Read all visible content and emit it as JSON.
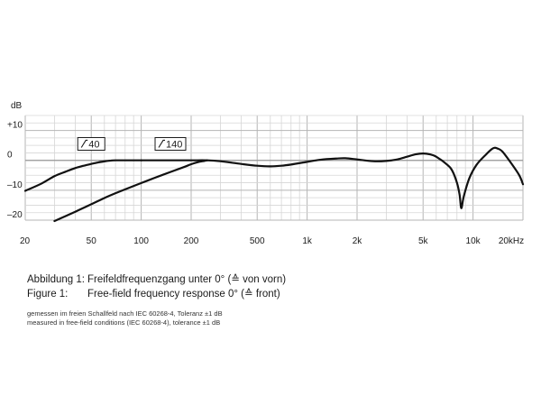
{
  "chart_data": {
    "type": "line",
    "title": "",
    "x_scale": "log",
    "xlim": [
      20,
      20000
    ],
    "ylim": [
      -20,
      15
    ],
    "ylabel": "dB",
    "grid": true,
    "x_tick_labels": [
      {
        "value": 20,
        "label": "20"
      },
      {
        "value": 50,
        "label": "50"
      },
      {
        "value": 100,
        "label": "100"
      },
      {
        "value": 200,
        "label": "200"
      },
      {
        "value": 500,
        "label": "500"
      },
      {
        "value": 1000,
        "label": "1k"
      },
      {
        "value": 2000,
        "label": "2k"
      },
      {
        "value": 5000,
        "label": "5k"
      },
      {
        "value": 10000,
        "label": "10k"
      },
      {
        "value": 20000,
        "label": "20kHz"
      }
    ],
    "y_tick_labels": [
      {
        "value": 10,
        "label": "+10"
      },
      {
        "value": 0,
        "label": "0"
      },
      {
        "value": -10,
        "label": "–10"
      },
      {
        "value": -20,
        "label": "–20"
      }
    ],
    "series": [
      {
        "name": "",
        "color": "#111111",
        "points": [
          [
            100,
            0
          ],
          [
            150,
            0
          ],
          [
            200,
            0
          ],
          [
            250,
            0
          ],
          [
            300,
            -0.3
          ],
          [
            400,
            -1.2
          ],
          [
            500,
            -1.8
          ],
          [
            600,
            -2.0
          ],
          [
            700,
            -1.8
          ],
          [
            800,
            -1.4
          ],
          [
            1000,
            -0.5
          ],
          [
            1200,
            0.2
          ],
          [
            1500,
            0.6
          ],
          [
            1700,
            0.7
          ],
          [
            2000,
            0.3
          ],
          [
            2500,
            -0.3
          ],
          [
            3000,
            -0.2
          ],
          [
            3500,
            0.3
          ],
          [
            4000,
            1.2
          ],
          [
            4500,
            2.0
          ],
          [
            5000,
            2.3
          ],
          [
            5500,
            2.0
          ],
          [
            6000,
            1.2
          ],
          [
            7000,
            -1.5
          ],
          [
            7500,
            -3.5
          ],
          [
            8000,
            -7.5
          ],
          [
            8300,
            -11.5
          ],
          [
            8500,
            -16.0
          ],
          [
            8800,
            -12.0
          ],
          [
            9500,
            -6.0
          ],
          [
            10500,
            -1.5
          ],
          [
            12000,
            2.0
          ],
          [
            13000,
            3.8
          ],
          [
            13500,
            4.2
          ],
          [
            14000,
            4.0
          ],
          [
            15000,
            3.0
          ],
          [
            17000,
            -1.0
          ],
          [
            19000,
            -5.0
          ],
          [
            20000,
            -8.0
          ]
        ]
      },
      {
        "name": "",
        "color": "#111111",
        "points": [
          [
            20,
            -10.2
          ],
          [
            25,
            -7.8
          ],
          [
            30,
            -5.3
          ],
          [
            35,
            -3.8
          ],
          [
            40,
            -2.6
          ],
          [
            45,
            -1.8
          ],
          [
            50,
            -1.2
          ],
          [
            55,
            -0.7
          ],
          [
            60,
            -0.35
          ],
          [
            65,
            -0.1
          ],
          [
            70,
            0
          ],
          [
            100,
            0
          ]
        ]
      },
      {
        "name": "",
        "color": "#111111",
        "points": [
          [
            30,
            -20.3
          ],
          [
            40,
            -17.2
          ],
          [
            50,
            -14.7
          ],
          [
            60,
            -12.6
          ],
          [
            70,
            -11.0
          ],
          [
            80,
            -9.7
          ],
          [
            100,
            -7.6
          ],
          [
            120,
            -5.9
          ],
          [
            150,
            -3.9
          ],
          [
            180,
            -2.3
          ],
          [
            200,
            -1.3
          ],
          [
            220,
            -0.6
          ],
          [
            240,
            -0.2
          ],
          [
            250,
            0
          ]
        ]
      }
    ],
    "annotations": [
      {
        "label": "40",
        "x": 50,
        "y": 5.5
      },
      {
        "label": "140",
        "x": 150,
        "y": 5.5
      }
    ]
  },
  "caption": {
    "de_label": "Abbildung 1:",
    "de_text": "Freifeldfrequenzgang unter 0° (≙ von vorn)",
    "en_label": "Figure 1:",
    "en_text": "Free-field frequency response 0° (≙ front)"
  },
  "notes": {
    "de": "gemessen im freien Schallfeld nach IEC 60268-4, Toleranz ±1 dB",
    "en": "measured in free-field conditions (IEC 60268-4), tolerance ±1 dB"
  }
}
